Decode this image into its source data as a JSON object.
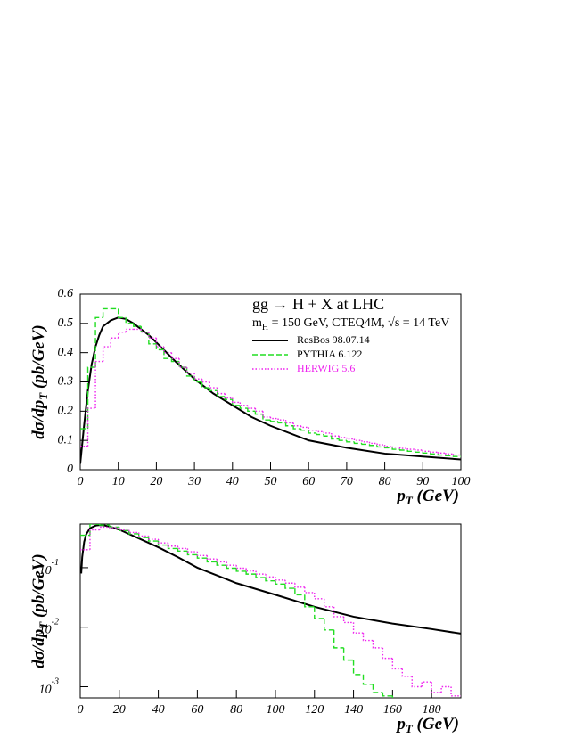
{
  "chart_data": [
    {
      "type": "line",
      "title": "gg → H + X at LHC",
      "subtitle": {
        "main": "m",
        "sub": "H",
        "rest": " = 150 GeV, CTEQ4M, √s = 14 TeV"
      },
      "x_label": {
        "main": "p",
        "sub": "T",
        "rest": " (GeV)"
      },
      "y_label": {
        "main": "dσ/dp",
        "sub": "T",
        "rest": " (pb/GeV)"
      },
      "xlim": [
        0,
        100
      ],
      "xticks": [
        0,
        10,
        20,
        30,
        40,
        50,
        60,
        70,
        80,
        90,
        100
      ],
      "ylim": [
        0,
        0.6
      ],
      "yticks": [
        0,
        0.1,
        0.2,
        0.3,
        0.4,
        0.5,
        0.6
      ],
      "log_y": false,
      "legend": "upper right",
      "series": [
        {
          "name": "ResBos 98.07.14",
          "type": "line",
          "dash": "solid",
          "color": "#000000",
          "label_color": "#000000",
          "x": [
            0,
            1,
            2,
            3,
            4,
            5,
            6,
            8,
            10,
            12,
            14,
            16,
            18,
            20,
            25,
            30,
            35,
            40,
            45,
            50,
            60,
            70,
            80,
            90,
            100
          ],
          "values": [
            0.02,
            0.15,
            0.27,
            0.36,
            0.42,
            0.46,
            0.49,
            0.51,
            0.52,
            0.515,
            0.5,
            0.48,
            0.46,
            0.435,
            0.37,
            0.31,
            0.26,
            0.22,
            0.18,
            0.15,
            0.1,
            0.075,
            0.055,
            0.045,
            0.035
          ]
        },
        {
          "name": "PYTHIA  6.122",
          "type": "step",
          "dash": "dashed",
          "color": "#22dd22",
          "label_color": "#000000",
          "bins": [
            0,
            2,
            4,
            6,
            8,
            10,
            12,
            14,
            16,
            18,
            20,
            22,
            24,
            26,
            28,
            30,
            32,
            34,
            36,
            38,
            40,
            42,
            44,
            46,
            48,
            50,
            52,
            54,
            56,
            58,
            60,
            62,
            64,
            66,
            68,
            70,
            72,
            74,
            76,
            78,
            80,
            82,
            84,
            86,
            88,
            90,
            92,
            94,
            96,
            98,
            100
          ],
          "values": [
            0.14,
            0.35,
            0.52,
            0.55,
            0.55,
            0.52,
            0.5,
            0.49,
            0.47,
            0.43,
            0.41,
            0.38,
            0.37,
            0.35,
            0.32,
            0.3,
            0.28,
            0.27,
            0.25,
            0.24,
            0.22,
            0.21,
            0.2,
            0.19,
            0.17,
            0.165,
            0.16,
            0.15,
            0.14,
            0.135,
            0.125,
            0.12,
            0.115,
            0.105,
            0.1,
            0.095,
            0.09,
            0.087,
            0.083,
            0.078,
            0.075,
            0.07,
            0.067,
            0.063,
            0.06,
            0.057,
            0.054,
            0.05,
            0.048,
            0.045
          ]
        },
        {
          "name": "HERWIG 5.6",
          "type": "step",
          "dash": "dotted",
          "color": "#ee22ee",
          "label_color": "#ee22ee",
          "bins": [
            0,
            2,
            4,
            6,
            8,
            10,
            12,
            14,
            16,
            18,
            20,
            22,
            24,
            26,
            28,
            30,
            32,
            34,
            36,
            38,
            40,
            42,
            44,
            46,
            48,
            50,
            52,
            54,
            56,
            58,
            60,
            62,
            64,
            66,
            68,
            70,
            72,
            74,
            76,
            78,
            80,
            82,
            84,
            86,
            88,
            90,
            92,
            94,
            96,
            98,
            100
          ],
          "values": [
            0.08,
            0.21,
            0.37,
            0.42,
            0.45,
            0.47,
            0.48,
            0.48,
            0.47,
            0.45,
            0.42,
            0.4,
            0.38,
            0.35,
            0.33,
            0.31,
            0.3,
            0.28,
            0.26,
            0.245,
            0.23,
            0.22,
            0.21,
            0.2,
            0.18,
            0.175,
            0.17,
            0.16,
            0.15,
            0.145,
            0.135,
            0.13,
            0.125,
            0.115,
            0.11,
            0.105,
            0.1,
            0.095,
            0.09,
            0.085,
            0.08,
            0.077,
            0.073,
            0.07,
            0.067,
            0.063,
            0.06,
            0.057,
            0.054,
            0.05
          ]
        }
      ]
    },
    {
      "type": "line",
      "x_label": {
        "main": "p",
        "sub": "T",
        "rest": " (GeV)"
      },
      "y_label": {
        "main": "dσ/dp",
        "sub": "T",
        "rest": " (pb/GeV)"
      },
      "xlim": [
        0,
        195
      ],
      "xticks": [
        0,
        20,
        40,
        60,
        80,
        100,
        120,
        140,
        160,
        180
      ],
      "ylim": [
        0.00065,
        0.54
      ],
      "yticks": [
        {
          "value": 0.1,
          "label": "10",
          "sup": "-1"
        },
        {
          "value": 0.01,
          "label": "10",
          "sup": "-2"
        },
        {
          "value": 0.001,
          "label": "10",
          "sup": "-3"
        }
      ],
      "log_y": true,
      "series": [
        {
          "type": "line",
          "dash": "solid",
          "color": "#000000",
          "x": [
            0.5,
            1,
            2,
            3,
            5,
            8,
            10,
            12,
            15,
            20,
            30,
            40,
            50,
            60,
            80,
            100,
            120,
            140,
            160,
            180,
            195
          ],
          "values": [
            0.08,
            0.15,
            0.27,
            0.36,
            0.46,
            0.51,
            0.52,
            0.515,
            0.49,
            0.435,
            0.31,
            0.22,
            0.15,
            0.1,
            0.055,
            0.035,
            0.022,
            0.015,
            0.0115,
            0.0093,
            0.0078
          ]
        },
        {
          "type": "step",
          "dash": "dashed",
          "color": "#22dd22",
          "bins": [
            0,
            5,
            10,
            15,
            20,
            25,
            30,
            35,
            40,
            45,
            50,
            55,
            60,
            65,
            70,
            75,
            80,
            85,
            90,
            95,
            100,
            105,
            110,
            115,
            120,
            125,
            130,
            135,
            140,
            145,
            150,
            155,
            160,
            165,
            170,
            175,
            180,
            185,
            190,
            195
          ],
          "values": [
            0.35,
            0.54,
            0.52,
            0.48,
            0.42,
            0.37,
            0.32,
            0.28,
            0.24,
            0.21,
            0.19,
            0.165,
            0.145,
            0.125,
            0.11,
            0.098,
            0.087,
            0.078,
            0.068,
            0.06,
            0.053,
            0.045,
            0.035,
            0.022,
            0.014,
            0.009,
            0.0045,
            0.0028,
            0.0016,
            0.0011,
            0.0008,
            0.0007,
            0.0006,
            null,
            null,
            null,
            null,
            null,
            null
          ]
        },
        {
          "type": "step",
          "dash": "dotted",
          "color": "#ee22ee",
          "bins": [
            0,
            5,
            10,
            15,
            20,
            25,
            30,
            35,
            40,
            45,
            50,
            55,
            60,
            65,
            70,
            75,
            80,
            85,
            90,
            95,
            100,
            105,
            110,
            115,
            120,
            125,
            130,
            135,
            140,
            145,
            150,
            155,
            160,
            165,
            170,
            175,
            180,
            185,
            190,
            195
          ],
          "values": [
            0.2,
            0.43,
            0.48,
            0.47,
            0.43,
            0.39,
            0.34,
            0.3,
            0.26,
            0.23,
            0.21,
            0.185,
            0.16,
            0.14,
            0.125,
            0.11,
            0.098,
            0.088,
            0.078,
            0.07,
            0.062,
            0.055,
            0.047,
            0.038,
            0.03,
            0.022,
            0.015,
            0.012,
            0.008,
            0.006,
            0.0045,
            0.003,
            0.002,
            0.0015,
            0.001,
            0.0012,
            0.0008,
            0.001,
            0.0007
          ]
        }
      ]
    }
  ]
}
